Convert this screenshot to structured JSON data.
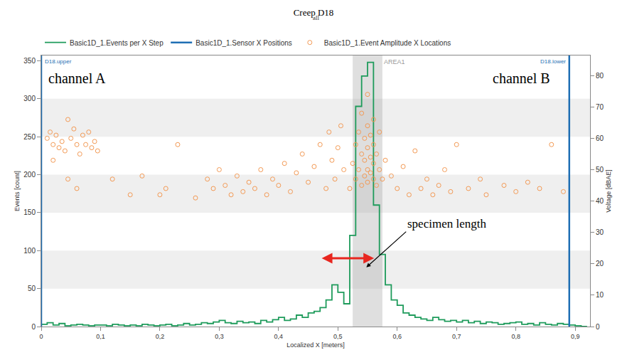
{
  "chart_data": {
    "type": "combo",
    "title": "Creep D18",
    "subtitle": "all",
    "x_label": "Localized X [meters]",
    "y_label": "Events [count]",
    "y2_label": "Voltage [dBAE]",
    "xlim": [
      0,
      0.925
    ],
    "xticks": [
      0,
      {
        "value": 0.1,
        "label": "0,1"
      },
      {
        "value": 0.2,
        "label": "0,2"
      },
      {
        "value": 0.3,
        "label": "0,3"
      },
      {
        "value": 0.4,
        "label": "0,4"
      },
      {
        "value": 0.5,
        "label": "0,5"
      },
      {
        "value": 0.6,
        "label": "0,6"
      },
      {
        "value": 0.7,
        "label": "0,7"
      },
      {
        "value": 0.8,
        "label": "0,8"
      },
      {
        "value": 0.9,
        "label": "0,9"
      }
    ],
    "ylim": [
      0,
      357
    ],
    "yticks": [
      0,
      50,
      100,
      150,
      200,
      250,
      300,
      350
    ],
    "y2lim": [
      0,
      86.4
    ],
    "y2ticks": [
      0,
      10,
      20,
      30,
      40,
      50,
      60,
      70,
      80
    ],
    "grid": true,
    "legend": "top",
    "series": [
      {
        "name": "Basic1D_1.Events per X Step",
        "type": "histogram",
        "color": "#1e9b5b",
        "bins": [
          0,
          0.01,
          0.02,
          0.03,
          0.04,
          0.05,
          0.06,
          0.07,
          0.08,
          0.09,
          0.1,
          0.11,
          0.12,
          0.13,
          0.14,
          0.15,
          0.16,
          0.17,
          0.18,
          0.19,
          0.2,
          0.21,
          0.22,
          0.23,
          0.24,
          0.25,
          0.26,
          0.27,
          0.28,
          0.29,
          0.3,
          0.31,
          0.32,
          0.33,
          0.34,
          0.35,
          0.36,
          0.37,
          0.38,
          0.39,
          0.4,
          0.41,
          0.42,
          0.43,
          0.44,
          0.45,
          0.46,
          0.47,
          0.48,
          0.49,
          0.5,
          0.51,
          0.52,
          0.53,
          0.54,
          0.55,
          0.56,
          0.57,
          0.58,
          0.59,
          0.6,
          0.61,
          0.62,
          0.63,
          0.64,
          0.65,
          0.66,
          0.67,
          0.68,
          0.69,
          0.7,
          0.71,
          0.72,
          0.73,
          0.74,
          0.75,
          0.76,
          0.77,
          0.78,
          0.79,
          0.8,
          0.81,
          0.82,
          0.83,
          0.84,
          0.85,
          0.86,
          0.87,
          0.88,
          0.89,
          0.9,
          0.91,
          0.92
        ],
        "values": [
          3,
          5,
          2,
          4,
          1,
          2,
          3,
          2,
          1,
          2,
          2,
          1,
          3,
          2,
          1,
          2,
          1,
          3,
          2,
          1,
          2,
          3,
          1,
          2,
          4,
          2,
          3,
          5,
          4,
          6,
          8,
          5,
          4,
          7,
          5,
          6,
          4,
          8,
          6,
          9,
          12,
          8,
          10,
          15,
          12,
          18,
          20,
          25,
          35,
          55,
          45,
          30,
          120,
          290,
          330,
          348,
          160,
          95,
          55,
          35,
          28,
          18,
          15,
          12,
          10,
          8,
          12,
          9,
          7,
          8,
          6,
          8,
          5,
          7,
          4,
          6,
          5,
          3,
          4,
          5,
          6,
          3,
          4,
          2,
          5,
          3,
          2,
          4,
          3,
          2,
          1,
          0
        ]
      },
      {
        "name": "Basic1D_1.Sensor X Positions",
        "type": "vline",
        "color": "#1f6fb4",
        "x": [
          0,
          0.89
        ],
        "labels": [
          "D18.upper",
          "D18.lower"
        ]
      },
      {
        "name": "Basic1D_1.Event Amplitude X Locations",
        "type": "scatter",
        "axis": "y2",
        "color": "#f39a55",
        "marker": "open-circle",
        "x": [
          0.01,
          0.015,
          0.02,
          0.025,
          0.03,
          0.035,
          0.04,
          0.045,
          0.05,
          0.055,
          0.06,
          0.065,
          0.07,
          0.075,
          0.08,
          0.085,
          0.09,
          0.095,
          0.02,
          0.045,
          0.06,
          0.12,
          0.15,
          0.17,
          0.2,
          0.21,
          0.23,
          0.26,
          0.28,
          0.29,
          0.3,
          0.31,
          0.32,
          0.33,
          0.34,
          0.35,
          0.36,
          0.37,
          0.38,
          0.39,
          0.4,
          0.41,
          0.42,
          0.43,
          0.44,
          0.45,
          0.46,
          0.47,
          0.48,
          0.485,
          0.49,
          0.495,
          0.5,
          0.505,
          0.51,
          0.52,
          0.525,
          0.53,
          0.53,
          0.535,
          0.535,
          0.54,
          0.54,
          0.54,
          0.545,
          0.545,
          0.545,
          0.55,
          0.55,
          0.55,
          0.55,
          0.55,
          0.555,
          0.555,
          0.555,
          0.56,
          0.56,
          0.56,
          0.56,
          0.565,
          0.565,
          0.57,
          0.57,
          0.575,
          0.58,
          0.59,
          0.6,
          0.61,
          0.62,
          0.63,
          0.64,
          0.65,
          0.66,
          0.67,
          0.68,
          0.69,
          0.7,
          0.72,
          0.74,
          0.75,
          0.78,
          0.8,
          0.82,
          0.84,
          0.86,
          0.88
        ],
        "values": [
          60,
          62,
          58,
          61,
          57,
          59,
          56,
          66,
          60,
          63,
          58,
          55,
          61,
          58,
          62,
          57,
          59,
          56,
          53,
          47,
          44,
          47,
          42,
          48,
          42,
          44,
          58,
          41,
          47,
          44,
          50,
          45,
          42,
          48,
          43,
          46,
          44,
          50,
          42,
          47,
          45,
          52,
          43,
          49,
          55,
          46,
          51,
          58,
          44,
          62,
          53,
          47,
          57,
          64,
          50,
          44,
          52,
          58,
          47,
          62,
          50,
          45,
          55,
          68,
          48,
          60,
          53,
          46,
          50,
          57,
          64,
          74,
          49,
          54,
          61,
          47,
          52,
          58,
          66,
          45,
          55,
          50,
          62,
          47,
          53,
          48,
          44,
          51,
          42,
          56,
          44,
          47,
          42,
          45,
          50,
          43,
          58,
          44,
          47,
          42,
          45,
          43,
          46,
          44,
          58,
          43
        ]
      }
    ],
    "area": {
      "label": "AREA1",
      "x": [
        0.525,
        0.575
      ]
    },
    "specimen_length": {
      "text": "specimen length",
      "x": [
        0.471,
        0.561
      ]
    },
    "annotations": [
      "channel A",
      "channel B"
    ]
  }
}
